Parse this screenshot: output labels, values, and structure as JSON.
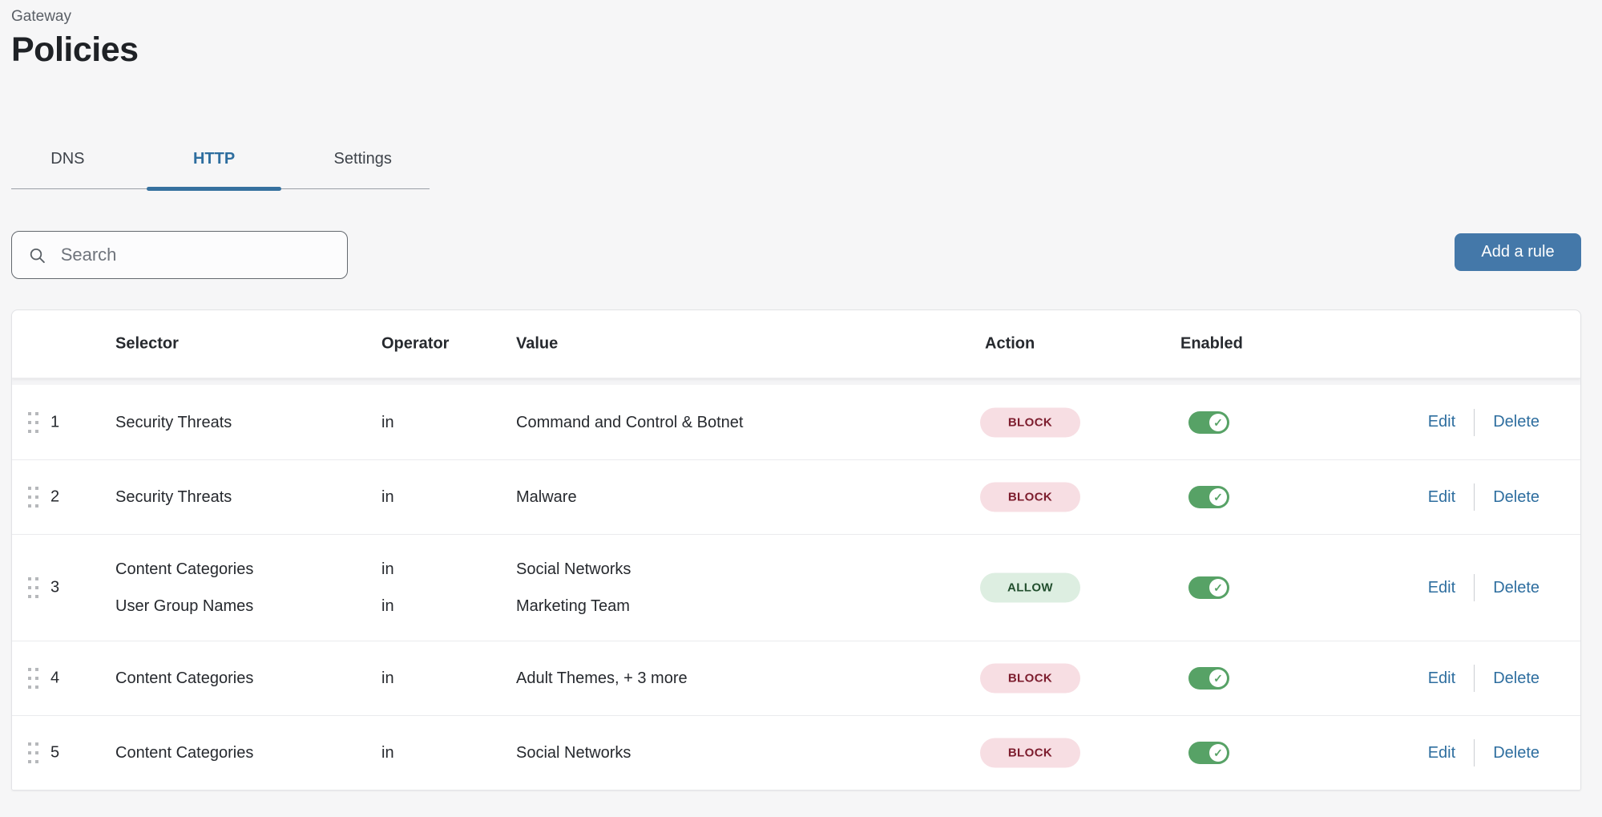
{
  "page": {
    "breadcrumb": "Gateway",
    "title": "Policies"
  },
  "tabs": [
    {
      "label": "DNS"
    },
    {
      "label": "HTTP"
    },
    {
      "label": "Settings"
    }
  ],
  "active_tab": "HTTP",
  "toolbar": {
    "search_placeholder": "Search",
    "add_rule_label": "Add a rule"
  },
  "row_actions": {
    "edit": "Edit",
    "delete": "Delete"
  },
  "table": {
    "columns": [
      "Selector",
      "Operator",
      "Value",
      "Action",
      "Enabled"
    ],
    "rows": [
      {
        "order": "1",
        "action": "BLOCK",
        "enabled": true,
        "conditions": [
          {
            "selector": "Security Threats",
            "operator": "in",
            "value": "Command and Control & Botnet"
          }
        ]
      },
      {
        "order": "2",
        "action": "BLOCK",
        "enabled": true,
        "conditions": [
          {
            "selector": "Security Threats",
            "operator": "in",
            "value": "Malware"
          }
        ]
      },
      {
        "order": "3",
        "action": "ALLOW",
        "enabled": true,
        "conditions": [
          {
            "selector": "Content Categories",
            "operator": "in",
            "value": "Social Networks"
          },
          {
            "selector": "User Group Names",
            "operator": "in",
            "value": "Marketing Team"
          }
        ]
      },
      {
        "order": "4",
        "action": "BLOCK",
        "enabled": true,
        "conditions": [
          {
            "selector": "Content Categories",
            "operator": "in",
            "value": "Adult Themes, + 3 more"
          }
        ]
      },
      {
        "order": "5",
        "action": "BLOCK",
        "enabled": true,
        "conditions": [
          {
            "selector": "Content Categories",
            "operator": "in",
            "value": "Social Networks"
          }
        ]
      }
    ]
  },
  "colors": {
    "accent_blue": "#36719f",
    "button_blue": "#4478a9",
    "link_blue": "#2e6e9f",
    "block_badge_bg": "#f7dee3",
    "block_badge_text": "#7d1d2e",
    "allow_badge_bg": "#ddeee1",
    "allow_badge_text": "#224f2e",
    "toggle_green": "#57a266"
  }
}
